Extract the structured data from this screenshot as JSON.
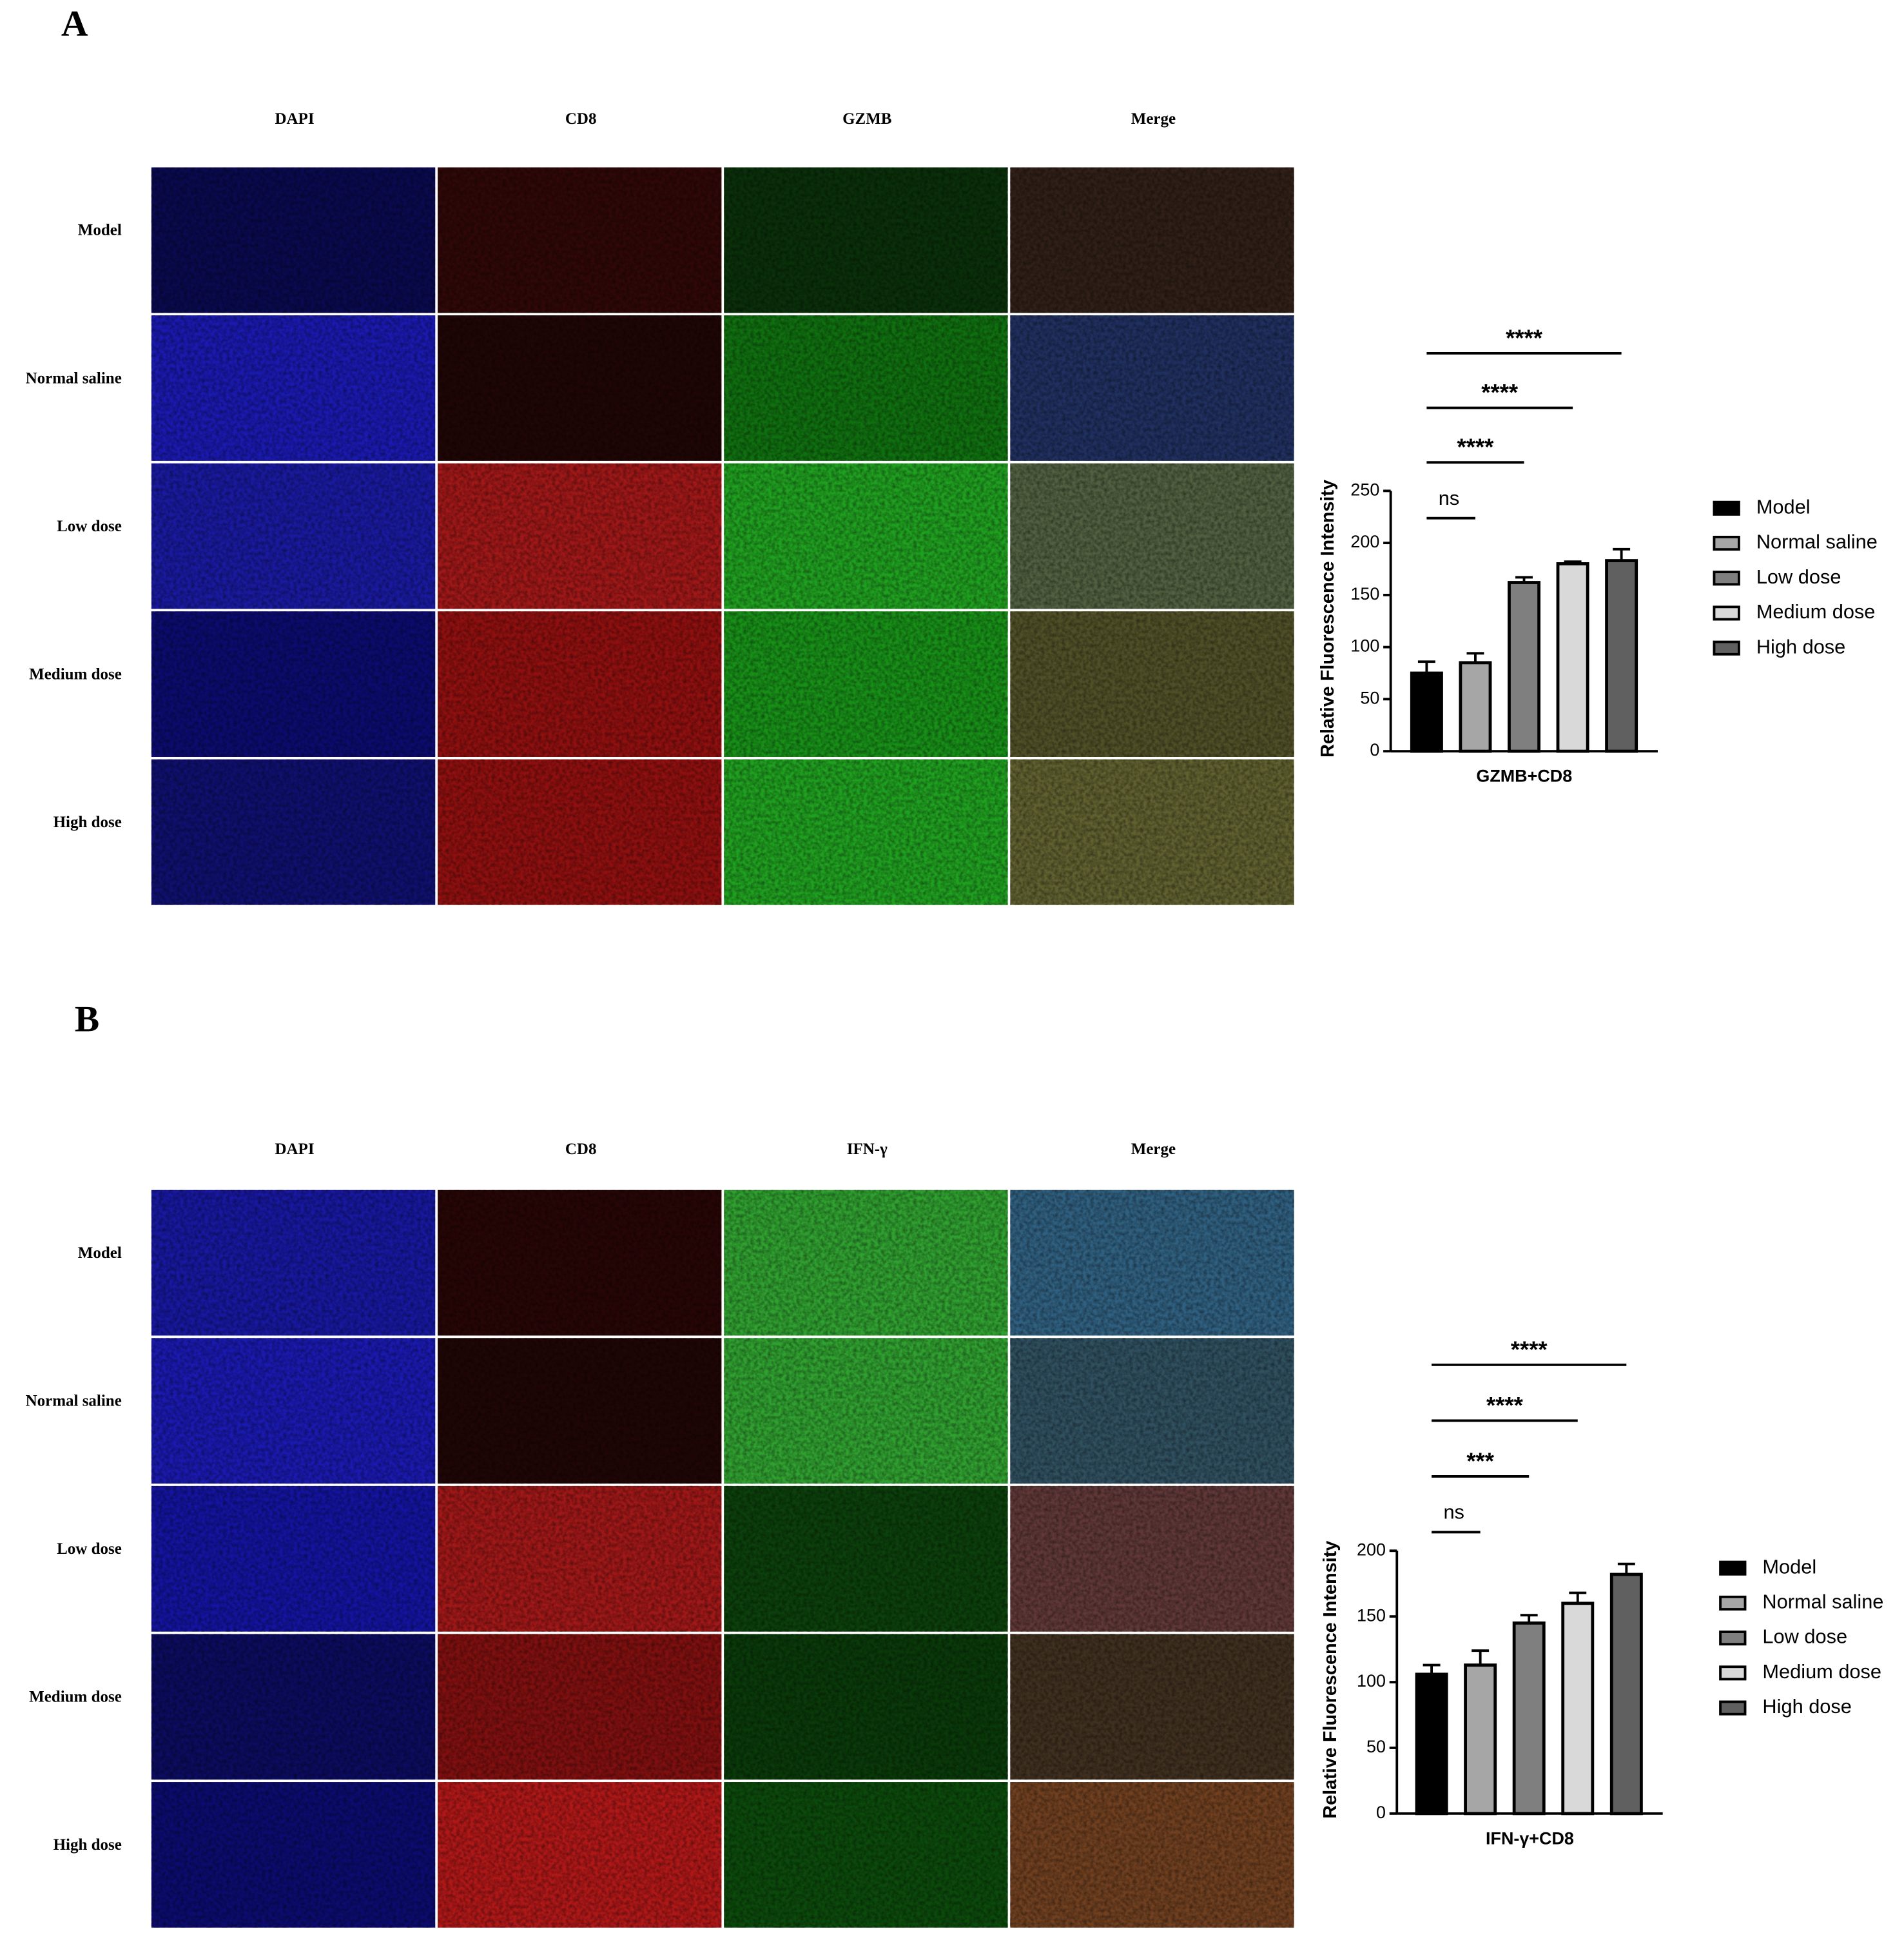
{
  "panels": [
    {
      "label": "A",
      "columns": [
        "DAPI",
        "CD8",
        "GZMB",
        "Merge"
      ],
      "rows": [
        "Model",
        "Normal saline",
        "Low dose",
        "Medium dose",
        "High dose"
      ]
    },
    {
      "label": "B",
      "columns": [
        "DAPI",
        "CD8",
        "IFN-γ",
        "Merge"
      ],
      "rows": [
        "Model",
        "Normal saline",
        "Low dose",
        "Medium dose",
        "High dose"
      ]
    }
  ],
  "chart_data": [
    {
      "type": "bar",
      "x_label": "GZMB+CD8",
      "y_label": "Relative Fluorescence Intensity",
      "categories": [
        "Model",
        "Normal saline",
        "Low dose",
        "Medium dose",
        "High dose"
      ],
      "colors": [
        "#000000",
        "#a6a6a6",
        "#7f7f7f",
        "#d9d9d9",
        "#606060"
      ],
      "values": [
        75,
        85,
        162,
        180,
        183
      ],
      "errors": [
        11,
        9,
        5,
        2,
        11
      ],
      "ylim": [
        0,
        250
      ],
      "yticks": [
        0,
        50,
        100,
        150,
        200,
        250
      ],
      "comparisons": [
        {
          "label": "ns",
          "groups": [
            "Model",
            "Normal saline"
          ]
        },
        {
          "label": "****",
          "groups": [
            "Model",
            "Low dose"
          ]
        },
        {
          "label": "****",
          "groups": [
            "Model",
            "Medium dose"
          ]
        },
        {
          "label": "****",
          "groups": [
            "Model",
            "High dose"
          ]
        }
      ]
    },
    {
      "type": "bar",
      "x_label": "IFN-γ+CD8",
      "y_label": "Relative Fluorescence Intensity",
      "categories": [
        "Model",
        "Normal saline",
        "Low dose",
        "Medium dose",
        "High dose"
      ],
      "colors": [
        "#000000",
        "#a6a6a6",
        "#7f7f7f",
        "#d9d9d9",
        "#606060"
      ],
      "values": [
        106,
        113,
        145,
        160,
        182
      ],
      "errors": [
        7,
        11,
        6,
        8,
        8
      ],
      "ylim": [
        0,
        200
      ],
      "yticks": [
        0,
        50,
        100,
        150,
        200
      ],
      "comparisons": [
        {
          "label": "ns",
          "groups": [
            "Model",
            "Normal saline"
          ]
        },
        {
          "label": "***",
          "groups": [
            "Model",
            "Low dose"
          ]
        },
        {
          "label": "****",
          "groups": [
            "Model",
            "Medium dose"
          ]
        },
        {
          "label": "****",
          "groups": [
            "Model",
            "High dose"
          ]
        }
      ]
    }
  ]
}
